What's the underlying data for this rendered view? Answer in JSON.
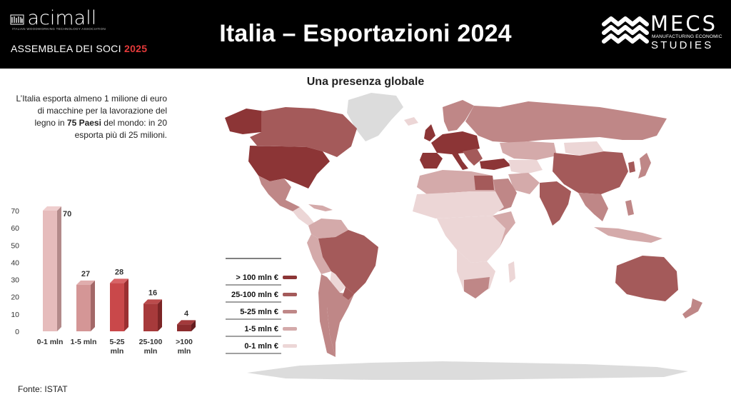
{
  "header": {
    "logo_left": "acimall",
    "logo_left_sub": "ITALIAN WOODWORKING TECHNOLOGY ASSOCIATION",
    "event": "ASSEMBLEA DEI SOCI",
    "event_year": "2025",
    "title": "Italia – Esportazioni 2024",
    "logo_right": "MECS",
    "logo_right_sub": "MANUFACTURING ECONOMIC",
    "logo_right_sub2": "STUDIES"
  },
  "subtitle": "Una presenza globale",
  "intro": {
    "part1": "L’Italia esporta almeno 1 milione di euro di macchine per la lavorazione del legno in ",
    "bold": "75 Paesi",
    "part2": " del mondo: in 20 esporta più di 25 milioni."
  },
  "source": "Fonte: ISTAT",
  "legend": [
    {
      "label": "> 100 mln €",
      "color": "#8c3536"
    },
    {
      "label": "25-100 mln €",
      "color": "#a45a5a"
    },
    {
      "label": "5-25 mln €",
      "color": "#bf8787"
    },
    {
      "label": "1-5 mln €",
      "color": "#d4aaaa"
    },
    {
      "label": "0-1 mln €",
      "color": "#ecd6d6"
    }
  ],
  "chart_data": {
    "type": "bar",
    "categories": [
      "0-1 mln",
      "1-5 mln",
      "5-25 mln",
      "25-100 mln",
      ">100 mln"
    ],
    "values": [
      70,
      27,
      28,
      16,
      4
    ],
    "ylim": [
      0,
      70
    ],
    "yticks": [
      0,
      10,
      20,
      30,
      40,
      50,
      60,
      70
    ],
    "colors": [
      "#e6bcbc",
      "#d49696",
      "#c9484a",
      "#a73a3b",
      "#8c2c2e"
    ],
    "side_colors": [
      "#b38a8a",
      "#a36868",
      "#9a3032",
      "#7c2526",
      "#651d1f"
    ],
    "top_colors": [
      "#efcece",
      "#e0adad",
      "#d86466",
      "#bb4b4c",
      "#a33a3c"
    ]
  }
}
